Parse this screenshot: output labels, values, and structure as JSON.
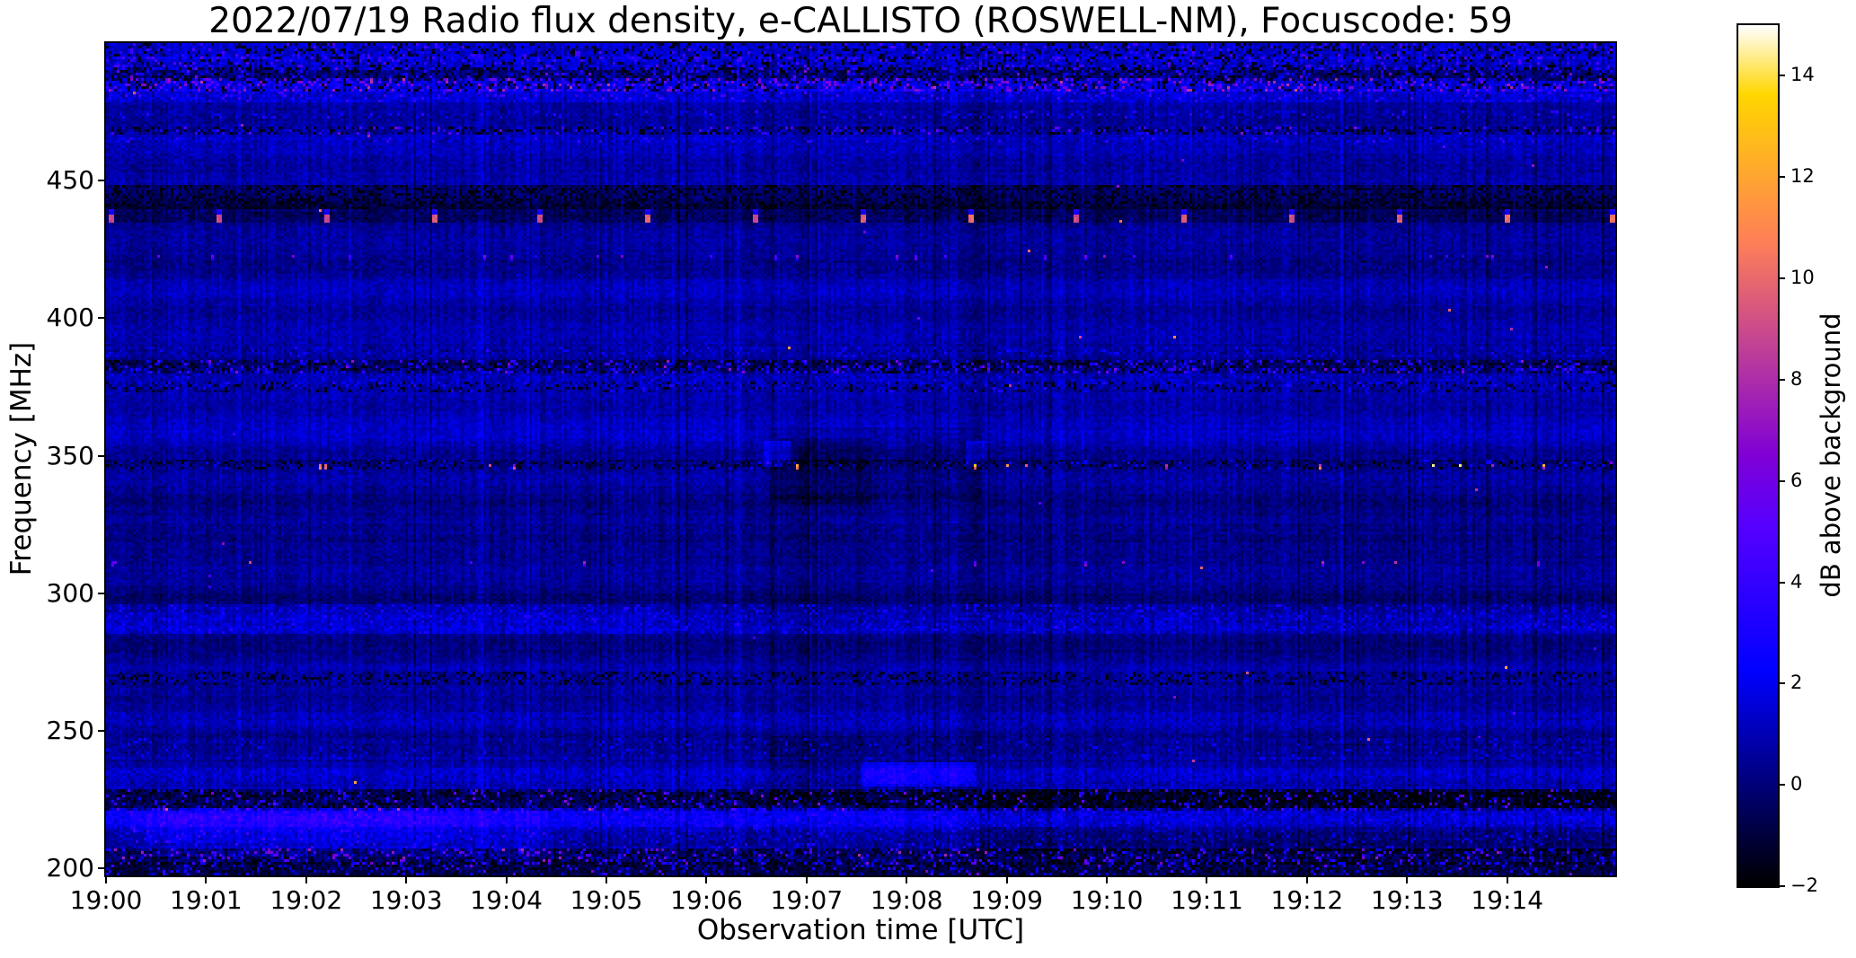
{
  "title": "2022/07/19  Radio flux density, e-CALLISTO (ROSWELL-NM), Focuscode: 59",
  "chart_data": {
    "type": "heatmap",
    "title": "2022/07/19  Radio flux density, e-CALLISTO (ROSWELL-NM), Focuscode: 59",
    "xlabel": "Observation time [UTC]",
    "ylabel": "Frequency [MHz]",
    "colorbar_label": "dB above background",
    "colormap": "gnuplot2",
    "vmin": -2,
    "vmax": 15,
    "x_range_minutes": [
      0,
      15.08
    ],
    "y_range_mhz": [
      197.5,
      500
    ],
    "grid": false,
    "x_ticks": [
      {
        "m": 0,
        "label": "19:00"
      },
      {
        "m": 1,
        "label": "19:01"
      },
      {
        "m": 2,
        "label": "19:02"
      },
      {
        "m": 3,
        "label": "19:03"
      },
      {
        "m": 4,
        "label": "19:04"
      },
      {
        "m": 5,
        "label": "19:05"
      },
      {
        "m": 6,
        "label": "19:06"
      },
      {
        "m": 7,
        "label": "19:07"
      },
      {
        "m": 8,
        "label": "19:08"
      },
      {
        "m": 9,
        "label": "19:09"
      },
      {
        "m": 10,
        "label": "19:10"
      },
      {
        "m": 11,
        "label": "19:11"
      },
      {
        "m": 12,
        "label": "19:12"
      },
      {
        "m": 13,
        "label": "19:13"
      },
      {
        "m": 14,
        "label": "19:14"
      }
    ],
    "y_ticks": [
      {
        "mhz": 450,
        "label": "450"
      },
      {
        "mhz": 400,
        "label": "400"
      },
      {
        "mhz": 350,
        "label": "350"
      },
      {
        "mhz": 300,
        "label": "300"
      },
      {
        "mhz": 250,
        "label": "250"
      },
      {
        "mhz": 200,
        "label": "200"
      }
    ],
    "colorbar_ticks": [
      {
        "db": 14,
        "label": "14"
      },
      {
        "db": 12,
        "label": "12"
      },
      {
        "db": 10,
        "label": "10"
      },
      {
        "db": 8,
        "label": "8"
      },
      {
        "db": 6,
        "label": "6"
      },
      {
        "db": 4,
        "label": "4"
      },
      {
        "db": 2,
        "label": "2"
      },
      {
        "db": 0,
        "label": "0"
      },
      {
        "db": -2,
        "label": "−2"
      }
    ],
    "background_db": 0.6,
    "features": {
      "bands": [
        {
          "f": [
            495.5,
            500
          ],
          "db": 0.3,
          "noise": 1.0,
          "dark_p": 0.2,
          "speck_p": 0.08,
          "speck_db": [
            2,
            5
          ]
        },
        {
          "f": [
            491,
            495.5
          ],
          "db": 0.8,
          "noise": 1.0,
          "dark_p": 0.15,
          "speck_p": 0.12,
          "speck_db": [
            2,
            5
          ]
        },
        {
          "f": [
            487.5,
            491
          ],
          "db": -0.3,
          "noise": 1.2,
          "dark_p": 0.3,
          "speck_p": 0.1,
          "speck_db": [
            1.5,
            4
          ],
          "pink_p": 0.008,
          "pink_db": [
            5,
            7
          ]
        },
        {
          "f": [
            483,
            487.5
          ],
          "db": 0.9,
          "noise": 1.5,
          "dark_p": 0.2,
          "speck_p": 0.2,
          "speck_db": [
            2.5,
            7
          ],
          "pink_p": 0.02,
          "pink_db": [
            6,
            8.5
          ]
        },
        {
          "f": [
            479.5,
            483
          ],
          "db": 0.5,
          "noise": 1.0,
          "speck_p": 0.1,
          "speck_db": [
            2,
            4.5
          ]
        },
        {
          "f": [
            474,
            476
          ],
          "db": 0.2,
          "noise": 0.9,
          "speck_p": 0.08,
          "speck_db": [
            1.5,
            4
          ]
        },
        {
          "f": [
            468,
            470
          ],
          "db": -0.2,
          "noise": 1.1,
          "dark_p": 0.25,
          "speck_p": 0.1,
          "speck_db": [
            1.5,
            5
          ],
          "pink_p": 0.006,
          "pink_db": [
            5,
            7
          ]
        },
        {
          "f": [
            465,
            466.2
          ],
          "db": 0.0,
          "noise": 0.9,
          "speck_p": 0.08,
          "speck_db": [
            1.5,
            4
          ]
        },
        {
          "f": [
            448,
            464
          ],
          "db": -0.1,
          "noise": 0.45
        },
        {
          "f": [
            440,
            448
          ],
          "db": -1.25,
          "noise": 0.45,
          "dark_p": 0.3,
          "dark_db": [
            -2,
            -1.2
          ]
        },
        {
          "f": [
            436,
            439.5
          ],
          "db": -0.6,
          "noise": 0.7
        },
        {
          "f": [
            415,
            421
          ],
          "db": -0.2,
          "noise": 0.5
        },
        {
          "f": [
            386.5,
            390
          ],
          "db": 0.25,
          "noise": 0.9,
          "speck_p": 0.08,
          "speck_db": [
            1,
            3
          ]
        },
        {
          "f": [
            381,
            385
          ],
          "db": -0.55,
          "noise": 1.3,
          "dark_p": 0.3,
          "speck_p": 0.15,
          "speck_db": [
            1.5,
            4.5
          ],
          "pink_p": 0.01,
          "pink_db": [
            5,
            7.5
          ]
        },
        {
          "f": [
            377.5,
            380.5
          ],
          "db": 0.2,
          "noise": 0.7,
          "speck_p": 0.06,
          "speck_db": [
            1,
            3
          ]
        },
        {
          "f": [
            374.5,
            377
          ],
          "db": -0.25,
          "noise": 1.0,
          "dark_p": 0.15,
          "speck_p": 0.08,
          "speck_db": [
            1,
            3.5
          ]
        },
        {
          "f": [
            345.5,
            348.5
          ],
          "db": -0.35,
          "noise": 0.8,
          "dark_p": 0.2,
          "speck_p": 0.05,
          "speck_db": [
            1,
            3
          ]
        },
        {
          "f": [
            319,
            325
          ],
          "db": -0.4,
          "noise": 0.5
        },
        {
          "f": [
            286,
            296
          ],
          "db": 0.75,
          "noise": 0.8,
          "speck_p": 0.1,
          "speck_db": [
            1.5,
            3.2
          ]
        },
        {
          "f": [
            268,
            272
          ],
          "db": -0.4,
          "noise": 1.0,
          "dark_p": 0.2
        },
        {
          "f": [
            251,
            257
          ],
          "db": 0.25,
          "noise": 0.5
        },
        {
          "f": [
            240,
            247
          ],
          "db": 0.3,
          "noise": 0.6,
          "speck_p": 0.05,
          "speck_db": [
            1.2,
            2.8
          ]
        },
        {
          "f": [
            229,
            237
          ],
          "db": 0.55,
          "noise": 0.85
        },
        {
          "f": [
            222,
            228.5
          ],
          "db": -0.95,
          "noise": 1.3,
          "dark_p": 0.35,
          "dark_db": [
            -2,
            -0.8
          ],
          "speck_p": 0.07,
          "speck_db": [
            1.5,
            4.5
          ],
          "pink_p": 0.02,
          "pink_db": [
            4.5,
            7
          ]
        },
        {
          "f": [
            216,
            221.5
          ],
          "db": 1.25,
          "noise": 0.9,
          "speck_p": 0.1,
          "speck_db": [
            2,
            4
          ]
        },
        {
          "f": [
            208,
            215.5
          ],
          "db": 0.45,
          "noise": 0.95,
          "speck_p": 0.06,
          "speck_db": [
            1.5,
            3.5
          ]
        },
        {
          "f": [
            202.5,
            207.5
          ],
          "db": -0.5,
          "noise": 1.5,
          "dark_p": 0.28,
          "speck_p": 0.12,
          "speck_db": [
            1.5,
            5.5
          ],
          "pink_p": 0.02,
          "pink_db": [
            4.5,
            8
          ]
        },
        {
          "f": [
            197.5,
            202.5
          ],
          "db": -0.95,
          "noise": 1.2,
          "dark_p": 0.35,
          "speck_p": 0.1,
          "speck_db": [
            1,
            4
          ],
          "pink_p": 0.012,
          "pink_db": [
            4,
            7
          ]
        }
      ],
      "rects": [
        {
          "f": [
            286,
            296
          ],
          "t": [
            0,
            5.6
          ],
          "db": 0.3
        },
        {
          "f": [
            205,
            222
          ],
          "t": [
            0.25,
            4.4
          ],
          "db": 0.7
        },
        {
          "f": [
            210,
            220
          ],
          "t": [
            0.4,
            3.4
          ],
          "db": 0.45
        },
        {
          "f": [
            335,
            360
          ],
          "t": [
            6.62,
            8.72
          ],
          "db": -0.5
        },
        {
          "f": [
            333,
            357
          ],
          "t": [
            6.68,
            7.62
          ],
          "db": -0.5
        },
        {
          "f": [
            270,
            335
          ],
          "t": [
            6.62,
            7.62
          ],
          "db": -0.25
        },
        {
          "f": [
            347,
            356
          ],
          "t": [
            6.58,
            6.8
          ],
          "db": 1.7
        },
        {
          "f": [
            347,
            356
          ],
          "t": [
            8.58,
            8.76
          ],
          "db": 1.3
        },
        {
          "f": [
            225,
            248
          ],
          "t": [
            6.62,
            7.55
          ],
          "db": -0.65
        },
        {
          "f": [
            231,
            238.5
          ],
          "t": [
            7.55,
            8.66
          ],
          "db": 1.5
        },
        {
          "f": [
            222,
            231
          ],
          "t": [
            7.55,
            8.66
          ],
          "db": -0.35
        },
        {
          "f": [
            238.5,
            248
          ],
          "t": [
            7.55,
            8.66
          ],
          "db": -0.25
        },
        {
          "f": [
            197.5,
            500
          ],
          "t": [
            6.6,
            6.67
          ],
          "db": -0.45
        },
        {
          "f": [
            197.5,
            500
          ],
          "t": [
            8.69,
            8.76
          ],
          "db": -0.3
        },
        {
          "f": [
            207,
            228.5
          ],
          "t": [
            8.72,
            15.08
          ],
          "db": -0.7
        },
        {
          "f": [
            202,
            207
          ],
          "t": [
            8.72,
            15.08
          ],
          "db": -0.3
        }
      ],
      "periodic_dots": {
        "f": 437,
        "period_min": 1.072,
        "phase_min": 0.03,
        "db": [
          9.3,
          10.8
        ],
        "width_min": 0.055,
        "height_mhz": 2.6,
        "halo_db": 3.2,
        "halo_offset_mhz": 2.4
      },
      "sparse_dots": [
        {
          "f": 423,
          "count": 26,
          "db": [
            3,
            7
          ]
        },
        {
          "f": 346.5,
          "count": 14,
          "db": [
            6,
            14.5
          ]
        },
        {
          "f": 311.5,
          "count": 12,
          "db": [
            4,
            9
          ]
        }
      ],
      "random_hot_pixels": {
        "count": 45,
        "db": [
          3.5,
          12
        ]
      }
    }
  }
}
